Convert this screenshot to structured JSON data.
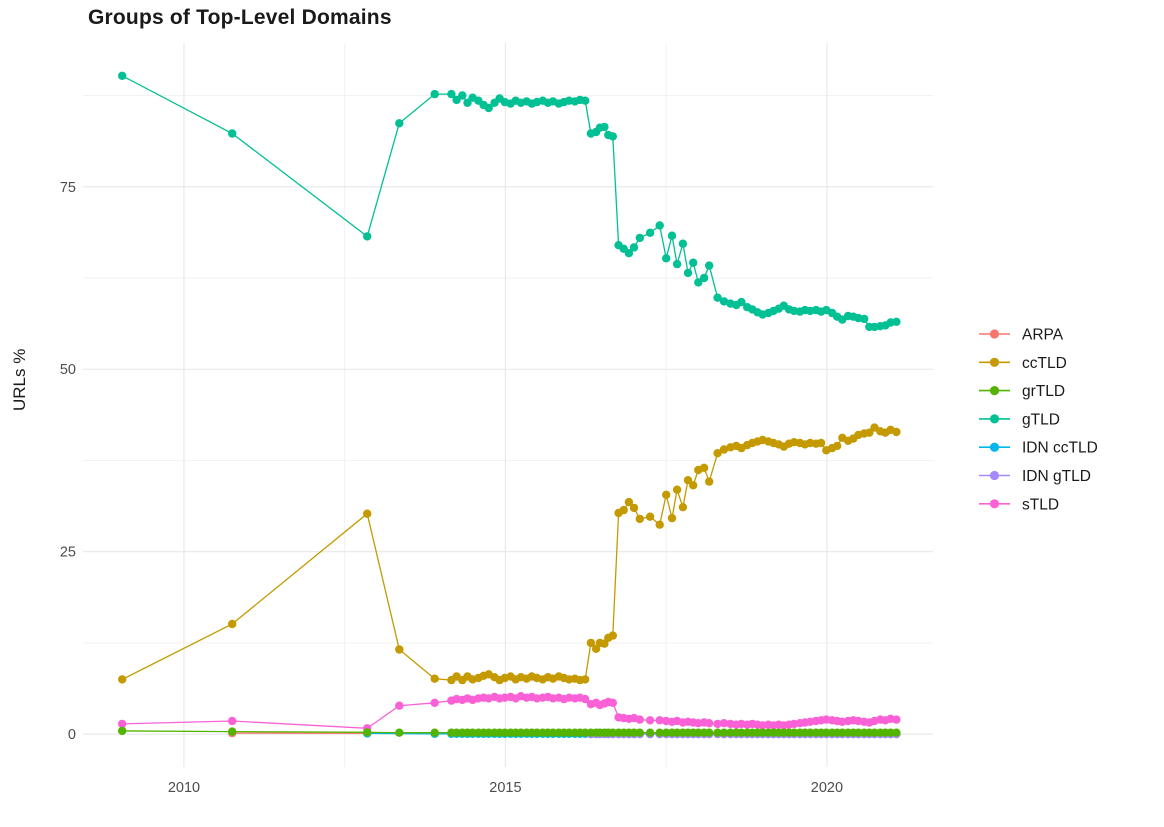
{
  "chart_data": {
    "type": "scatter",
    "title": "Groups of Top-Level Domains",
    "xlabel": "",
    "ylabel": "URLs %",
    "x_axis": {
      "range": [
        2008.43,
        2021.65
      ],
      "ticks": [
        {
          "label": "2010",
          "value": 2010
        },
        {
          "label": "2015",
          "value": 2015
        },
        {
          "label": "2020",
          "value": 2020
        }
      ],
      "minor": [
        2012.5,
        2017.5
      ]
    },
    "y_axis": {
      "title": "URLs %",
      "range": [
        -4.5,
        94.7
      ],
      "ticks": [
        {
          "label": "0",
          "value": 0
        },
        {
          "label": "25",
          "value": 25
        },
        {
          "label": "50",
          "value": 50
        },
        {
          "label": "75",
          "value": 75
        }
      ],
      "minor": [
        12.5,
        37.5,
        62.5,
        87.5
      ]
    },
    "colors": {
      "background": "#ffffff",
      "grid_major": "#e7e7e7",
      "grid_minor": "#f2f2f2",
      "axis_text": "#4d4d4d",
      "text": "#1a1a1a"
    },
    "x_dense": [
      2013.9,
      2014.16,
      2014.24,
      2014.33,
      2014.41,
      2014.49,
      2014.58,
      2014.66,
      2014.74,
      2014.83,
      2014.91,
      2014.99,
      2015.08,
      2015.16,
      2015.24,
      2015.33,
      2015.41,
      2015.49,
      2015.58,
      2015.66,
      2015.74,
      2015.83,
      2015.91,
      2015.99,
      2016.08,
      2016.16,
      2016.24,
      2016.33,
      2016.41,
      2016.47,
      2016.54,
      2016.6,
      2016.67,
      2016.76,
      2016.84,
      2016.92,
      2017.0,
      2017.09,
      2017.25,
      2017.4,
      2017.5,
      2017.59,
      2017.67,
      2017.76,
      2017.84,
      2017.92,
      2018.0,
      2018.09,
      2018.17,
      2018.3,
      2018.4,
      2018.5,
      2018.59,
      2018.67,
      2018.76,
      2018.84,
      2018.92,
      2019.0,
      2019.09,
      2019.17,
      2019.25,
      2019.33,
      2019.41,
      2019.49,
      2019.58,
      2019.66,
      2019.74,
      2019.83,
      2019.91,
      2019.99,
      2020.08,
      2020.16,
      2020.24,
      2020.33,
      2020.41,
      2020.49,
      2020.58,
      2020.66,
      2020.74,
      2020.83,
      2020.91,
      2020.99,
      2021.08
    ],
    "series": [
      {
        "name": "ARPA",
        "color": "#F8766D",
        "sparse": [
          [
            2010.75,
            0.15
          ],
          [
            2012.85,
            0.1
          ]
        ]
      },
      {
        "name": "ccTLD",
        "color": "#C49A00",
        "sparse": [
          [
            2009.04,
            7.5
          ],
          [
            2010.75,
            15.1
          ],
          [
            2012.85,
            30.2
          ],
          [
            2013.35,
            11.6
          ]
        ],
        "y_dense": [
          7.6,
          7.4,
          7.9,
          7.4,
          7.9,
          7.5,
          7.7,
          8.0,
          8.2,
          7.8,
          7.4,
          7.7,
          7.9,
          7.5,
          7.8,
          7.6,
          7.9,
          7.7,
          7.5,
          7.8,
          7.6,
          7.9,
          7.7,
          7.5,
          7.6,
          7.4,
          7.5,
          12.5,
          11.7,
          12.5,
          12.4,
          13.2,
          13.5,
          30.3,
          30.7,
          31.8,
          31.0,
          29.5,
          29.8,
          28.7,
          32.8,
          29.6,
          33.5,
          31.1,
          34.8,
          34.1,
          36.2,
          36.5,
          34.6,
          38.5,
          39.0,
          39.3,
          39.5,
          39.2,
          39.6,
          39.9,
          40.1,
          40.3,
          40.1,
          39.9,
          39.7,
          39.4,
          39.8,
          40.0,
          39.9,
          39.7,
          39.9,
          39.8,
          39.9,
          38.9,
          39.2,
          39.5,
          40.6,
          40.2,
          40.5,
          41.0,
          41.2,
          41.3,
          42.0,
          41.5,
          41.3,
          41.7,
          41.4
        ]
      },
      {
        "name": "grTLD",
        "color": "#53B400",
        "sparse": [
          [
            2009.04,
            0.45
          ],
          [
            2010.75,
            0.35
          ],
          [
            2012.85,
            0.25
          ],
          [
            2013.35,
            0.2
          ]
        ],
        "y_dense_const": 0.2
      },
      {
        "name": "gTLD",
        "color": "#00C094",
        "sparse": [
          [
            2009.04,
            90.2
          ],
          [
            2010.75,
            82.3
          ],
          [
            2012.85,
            68.2
          ],
          [
            2013.35,
            83.7
          ]
        ],
        "y_dense": [
          87.7,
          87.7,
          86.9,
          87.5,
          86.5,
          87.2,
          86.8,
          86.2,
          85.8,
          86.5,
          87.1,
          86.6,
          86.4,
          86.8,
          86.5,
          86.7,
          86.4,
          86.6,
          86.8,
          86.5,
          86.7,
          86.4,
          86.6,
          86.8,
          86.7,
          86.9,
          86.8,
          82.3,
          82.5,
          83.1,
          83.2,
          82.1,
          81.9,
          67.0,
          66.5,
          65.9,
          66.7,
          68.0,
          68.7,
          69.7,
          65.2,
          68.3,
          64.4,
          67.2,
          63.2,
          64.6,
          61.9,
          62.5,
          64.2,
          59.8,
          59.3,
          59.0,
          58.8,
          59.2,
          58.5,
          58.2,
          57.8,
          57.5,
          57.7,
          58.0,
          58.3,
          58.7,
          58.2,
          58.0,
          57.9,
          58.1,
          58.0,
          58.1,
          57.9,
          58.1,
          57.7,
          57.2,
          56.8,
          57.3,
          57.2,
          57.0,
          56.9,
          55.8,
          55.8,
          55.9,
          56.0,
          56.4,
          56.5
        ]
      },
      {
        "name": "IDN ccTLD",
        "color": "#00B6EB",
        "sparse": [
          [
            2012.85,
            0.1
          ]
        ],
        "y_dense_const": 0.05
      },
      {
        "name": "IDN gTLD",
        "color": "#A58AFF",
        "sparse": [],
        "y_dense_const": 0.0,
        "dense_from": 2016.33
      },
      {
        "name": "sTLD",
        "color": "#FB61D7",
        "sparse": [
          [
            2009.04,
            1.4
          ],
          [
            2010.75,
            1.8
          ],
          [
            2012.85,
            0.8
          ],
          [
            2013.35,
            3.9
          ]
        ],
        "y_dense": [
          4.3,
          4.6,
          4.8,
          4.7,
          4.9,
          4.7,
          4.9,
          5.0,
          4.9,
          5.1,
          4.9,
          5.0,
          5.1,
          4.9,
          5.2,
          5.0,
          5.1,
          4.9,
          5.0,
          5.1,
          4.9,
          5.0,
          4.8,
          5.0,
          4.9,
          5.0,
          4.8,
          4.1,
          4.3,
          4.0,
          4.2,
          4.4,
          4.3,
          2.3,
          2.2,
          2.1,
          2.2,
          2.0,
          1.9,
          1.9,
          1.8,
          1.7,
          1.8,
          1.6,
          1.7,
          1.6,
          1.5,
          1.6,
          1.5,
          1.4,
          1.5,
          1.4,
          1.3,
          1.4,
          1.3,
          1.4,
          1.3,
          1.2,
          1.3,
          1.2,
          1.3,
          1.2,
          1.3,
          1.4,
          1.5,
          1.6,
          1.7,
          1.8,
          1.9,
          2.0,
          1.9,
          1.8,
          1.7,
          1.8,
          1.9,
          1.8,
          1.7,
          1.6,
          1.8,
          2.0,
          1.9,
          2.1,
          2.0
        ]
      }
    ],
    "draw_order": [
      "ARPA",
      "IDN ccTLD",
      "IDN gTLD",
      "ccTLD",
      "gTLD",
      "sTLD",
      "grTLD"
    ],
    "legend": {
      "position": "right"
    }
  }
}
